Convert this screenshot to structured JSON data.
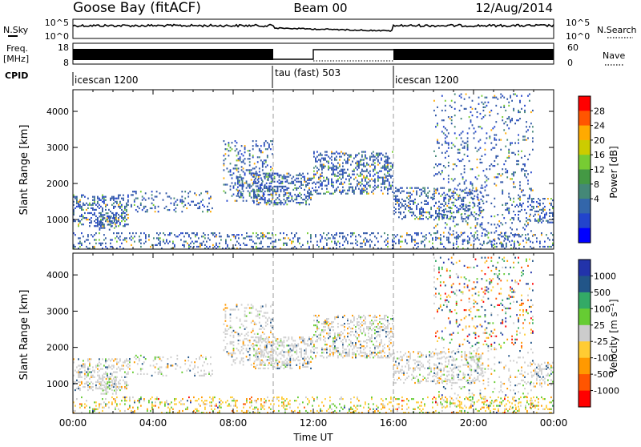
{
  "header": {
    "station": "Goose Bay (fitACF)",
    "beam": "Beam 00",
    "date": "12/Aug/2014"
  },
  "strips": {
    "nsky_label": "N.Sky",
    "nsky_top": "10^5",
    "nsky_bottom": "10^0",
    "nsky_right_top": "10^5",
    "nsky_right_bottom": "10^0",
    "nsearch_label": "N.Search",
    "freq_label_1": "Freq.",
    "freq_label_2": "[MHz]",
    "freq_top": "18",
    "freq_bottom": "8",
    "nave_top": "60",
    "nave_bottom": "0",
    "nave_label": "Nave",
    "cpid_label": "CPID",
    "modes": [
      {
        "name": "icescan 1200",
        "start_hour": 0,
        "end_hour": 10
      },
      {
        "name": "tau (fast) 503",
        "start_hour": 10,
        "end_hour": 16
      },
      {
        "name": "icescan 1200",
        "start_hour": 16,
        "end_hour": 24
      }
    ]
  },
  "chart_data": [
    {
      "type": "heatmap",
      "name": "power",
      "ylabel": "Slant Range [km]",
      "xlim": [
        0,
        24
      ],
      "ylim": [
        180,
        4600
      ],
      "yticks": [
        1000,
        2000,
        3000,
        4000
      ],
      "colorbar_label": "Power [dB]",
      "colorbar_ticks": [
        "28",
        "24",
        "20",
        "16",
        "12",
        "8",
        "4"
      ],
      "colorbar_colors": [
        "#ff0000",
        "#ff5500",
        "#ffaa00",
        "#cccc00",
        "#77cc33",
        "#449944",
        "#448877",
        "#3366aa",
        "#2244cc",
        "#0000ff"
      ],
      "dominant_color": "#2f56a6",
      "regions": [
        {
          "t0": 0.0,
          "t1": 2.8,
          "r0": 800,
          "r1": 1700,
          "density": 0.55
        },
        {
          "t0": 1.3,
          "t1": 2.2,
          "r0": 700,
          "r1": 1200,
          "density": 0.7
        },
        {
          "t0": 2.8,
          "t1": 7.0,
          "r0": 1200,
          "r1": 1800,
          "density": 0.25
        },
        {
          "t0": 7.5,
          "t1": 10.0,
          "r0": 1500,
          "r1": 3200,
          "density": 0.35
        },
        {
          "t0": 8.2,
          "t1": 8.5,
          "r0": 1600,
          "r1": 2200,
          "density": 0.8
        },
        {
          "t0": 9.0,
          "t1": 12.0,
          "r0": 1400,
          "r1": 2300,
          "density": 0.65
        },
        {
          "t0": 12.0,
          "t1": 16.0,
          "r0": 1700,
          "r1": 2900,
          "density": 0.55
        },
        {
          "t0": 16.0,
          "t1": 20.5,
          "r0": 1000,
          "r1": 1900,
          "density": 0.5
        },
        {
          "t0": 18.0,
          "t1": 23.0,
          "r0": 300,
          "r1": 4500,
          "density": 0.18
        },
        {
          "t0": 22.8,
          "t1": 24.0,
          "r0": 900,
          "r1": 1600,
          "density": 0.6
        },
        {
          "t0": 0.0,
          "t1": 24.0,
          "r0": 180,
          "r1": 650,
          "density": 0.35
        }
      ]
    },
    {
      "type": "heatmap",
      "name": "velocity",
      "ylabel": "Slant Range [km]",
      "xlabel": "Time UT",
      "xlim": [
        0,
        24
      ],
      "ylim": [
        180,
        4600
      ],
      "xticks": [
        "00:00",
        "04:00",
        "08:00",
        "12:00",
        "16:00",
        "20:00",
        "00:00"
      ],
      "yticks": [
        1000,
        2000,
        3000,
        4000
      ],
      "colorbar_label": "Velocity [m s⁻¹]",
      "colorbar_ticks": [
        "1000",
        "500",
        "100",
        "25",
        "-25",
        "-100",
        "-500",
        "-1000"
      ],
      "colorbar_colors": [
        "#2233aa",
        "#225588",
        "#33aa66",
        "#66cc33",
        "#cccccc",
        "#ffcc33",
        "#ff9900",
        "#ff5500",
        "#ff0000"
      ],
      "dominant_color": "#cfcfcf",
      "regions": [
        {
          "t0": 0.0,
          "t1": 2.8,
          "r0": 800,
          "r1": 1700,
          "density": 0.55
        },
        {
          "t0": 1.3,
          "t1": 2.2,
          "r0": 700,
          "r1": 1200,
          "density": 0.7
        },
        {
          "t0": 2.8,
          "t1": 7.0,
          "r0": 1200,
          "r1": 1800,
          "density": 0.25
        },
        {
          "t0": 7.5,
          "t1": 10.0,
          "r0": 1500,
          "r1": 3200,
          "density": 0.35
        },
        {
          "t0": 9.0,
          "t1": 12.0,
          "r0": 1400,
          "r1": 2300,
          "density": 0.65
        },
        {
          "t0": 12.0,
          "t1": 16.0,
          "r0": 1700,
          "r1": 2900,
          "density": 0.55
        },
        {
          "t0": 16.0,
          "t1": 20.5,
          "r0": 1000,
          "r1": 1900,
          "density": 0.5
        },
        {
          "t0": 18.0,
          "t1": 23.0,
          "r0": 300,
          "r1": 4500,
          "density": 0.18
        },
        {
          "t0": 22.8,
          "t1": 24.0,
          "r0": 900,
          "r1": 1600,
          "density": 0.6
        },
        {
          "t0": 0.0,
          "t1": 24.0,
          "r0": 180,
          "r1": 650,
          "density": 0.35
        }
      ]
    }
  ]
}
